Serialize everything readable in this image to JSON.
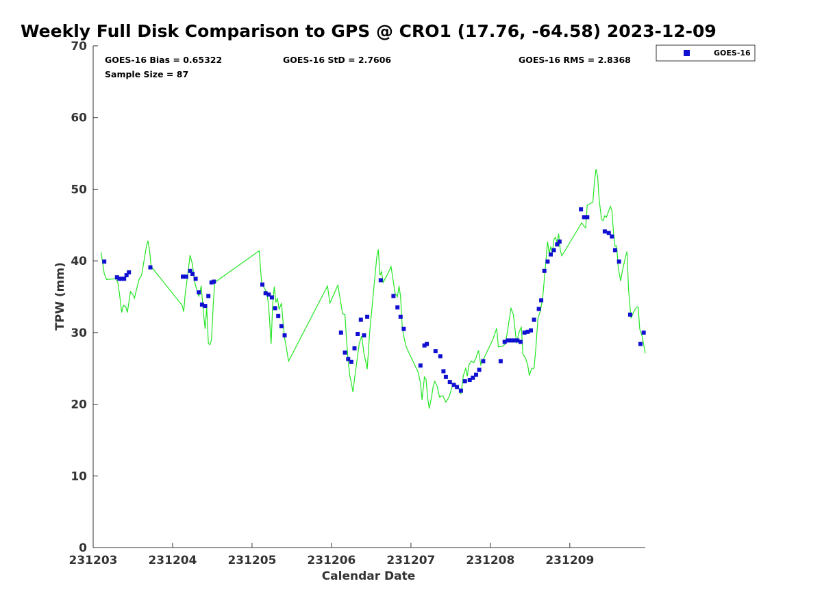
{
  "chart_data": {
    "type": "scatter",
    "title": "Weekly Full Disk Comparison to GPS @ CRO1 (17.76, -64.58) 2023-12-09",
    "xlabel": "Calendar Date",
    "ylabel": "TPW (mm)",
    "xlim": [
      0,
      6.95
    ],
    "ylim": [
      0,
      70
    ],
    "x_ticks": [
      {
        "value": 0,
        "label": "231203"
      },
      {
        "value": 1,
        "label": "231204"
      },
      {
        "value": 2,
        "label": "231205"
      },
      {
        "value": 3,
        "label": "231206"
      },
      {
        "value": 4,
        "label": "231207"
      },
      {
        "value": 5,
        "label": "231208"
      },
      {
        "value": 6,
        "label": "231209"
      }
    ],
    "y_ticks": [
      0,
      10,
      20,
      30,
      40,
      50,
      60,
      70
    ],
    "stats": {
      "bias": "GOES-16 Bias = 0.65322",
      "std": "GOES-16 StD = 2.7606",
      "rms": "GOES-16 RMS = 2.8368",
      "sample": "Sample Size = 87"
    },
    "legend": {
      "label": "GOES-16",
      "position": "top-right outside"
    },
    "colors": {
      "goes": "#1010d0",
      "gps": "#22e622",
      "axis": "#333333"
    },
    "series": [
      {
        "name": "GOES-16",
        "style": "markers",
        "points": [
          [
            0.14,
            39.9
          ],
          [
            0.3,
            37.7
          ],
          [
            0.33,
            37.5
          ],
          [
            0.36,
            37.5
          ],
          [
            0.39,
            37.5
          ],
          [
            0.42,
            38.0
          ],
          [
            0.45,
            38.4
          ],
          [
            0.72,
            39.1
          ],
          [
            1.13,
            37.8
          ],
          [
            1.17,
            37.8
          ],
          [
            1.22,
            38.6
          ],
          [
            1.25,
            38.2
          ],
          [
            1.29,
            37.5
          ],
          [
            1.33,
            35.6
          ],
          [
            1.37,
            33.9
          ],
          [
            1.41,
            33.7
          ],
          [
            1.45,
            35.1
          ],
          [
            1.49,
            37.0
          ],
          [
            1.52,
            37.1
          ],
          [
            2.13,
            36.7
          ],
          [
            2.17,
            35.5
          ],
          [
            2.21,
            35.3
          ],
          [
            2.25,
            34.9
          ],
          [
            2.29,
            33.4
          ],
          [
            2.33,
            32.3
          ],
          [
            2.37,
            30.9
          ],
          [
            2.41,
            29.6
          ],
          [
            3.12,
            30.0
          ],
          [
            3.17,
            27.2
          ],
          [
            3.21,
            26.3
          ],
          [
            3.25,
            25.9
          ],
          [
            3.29,
            27.8
          ],
          [
            3.33,
            29.8
          ],
          [
            3.37,
            31.8
          ],
          [
            3.41,
            29.6
          ],
          [
            3.45,
            32.2
          ],
          [
            3.62,
            37.3
          ],
          [
            3.78,
            35.1
          ],
          [
            3.83,
            33.5
          ],
          [
            3.87,
            32.2
          ],
          [
            3.91,
            30.5
          ],
          [
            4.12,
            25.4
          ],
          [
            4.17,
            28.2
          ],
          [
            4.2,
            28.4
          ],
          [
            4.31,
            27.4
          ],
          [
            4.37,
            26.7
          ],
          [
            4.41,
            24.6
          ],
          [
            4.44,
            23.8
          ],
          [
            4.49,
            23.1
          ],
          [
            4.54,
            22.7
          ],
          [
            4.58,
            22.4
          ],
          [
            4.63,
            21.9
          ],
          [
            4.68,
            23.2
          ],
          [
            4.74,
            23.4
          ],
          [
            4.78,
            23.7
          ],
          [
            4.82,
            24.1
          ],
          [
            4.86,
            24.8
          ],
          [
            4.91,
            26.0
          ],
          [
            5.13,
            26.0
          ],
          [
            5.18,
            28.7
          ],
          [
            5.22,
            28.9
          ],
          [
            5.26,
            28.9
          ],
          [
            5.3,
            28.9
          ],
          [
            5.34,
            28.9
          ],
          [
            5.38,
            28.7
          ],
          [
            5.43,
            30.0
          ],
          [
            5.47,
            30.1
          ],
          [
            5.51,
            30.3
          ],
          [
            5.55,
            31.8
          ],
          [
            5.61,
            33.3
          ],
          [
            5.64,
            34.5
          ],
          [
            5.68,
            38.6
          ],
          [
            5.72,
            39.9
          ],
          [
            5.76,
            40.9
          ],
          [
            5.8,
            41.5
          ],
          [
            5.84,
            42.3
          ],
          [
            5.87,
            42.7
          ],
          [
            6.14,
            47.2
          ],
          [
            6.18,
            46.1
          ],
          [
            6.22,
            46.1
          ],
          [
            6.44,
            44.1
          ],
          [
            6.49,
            43.9
          ],
          [
            6.53,
            43.4
          ],
          [
            6.57,
            41.5
          ],
          [
            6.62,
            39.9
          ],
          [
            6.76,
            32.5
          ],
          [
            6.89,
            28.4
          ],
          [
            6.93,
            30.0
          ]
        ]
      },
      {
        "name": "GPS",
        "style": "line",
        "points": [
          [
            0.1,
            41.2
          ],
          [
            0.14,
            38.2
          ],
          [
            0.17,
            37.4
          ],
          [
            0.28,
            37.5
          ],
          [
            0.31,
            37.0
          ],
          [
            0.33,
            35.5
          ],
          [
            0.36,
            32.8
          ],
          [
            0.38,
            33.8
          ],
          [
            0.41,
            33.6
          ],
          [
            0.43,
            32.8
          ],
          [
            0.47,
            35.7
          ],
          [
            0.5,
            35.3
          ],
          [
            0.52,
            34.8
          ],
          [
            0.55,
            36.2
          ],
          [
            0.58,
            37.5
          ],
          [
            0.61,
            38.0
          ],
          [
            0.64,
            40.0
          ],
          [
            0.67,
            42.0
          ],
          [
            0.69,
            42.8
          ],
          [
            0.71,
            41.5
          ],
          [
            0.73,
            39.2
          ],
          [
            1.12,
            33.8
          ],
          [
            1.14,
            32.9
          ],
          [
            1.16,
            35.5
          ],
          [
            1.19,
            38.0
          ],
          [
            1.22,
            40.8
          ],
          [
            1.25,
            39.5
          ],
          [
            1.27,
            37.5
          ],
          [
            1.29,
            36.5
          ],
          [
            1.31,
            35.8
          ],
          [
            1.33,
            35.0
          ],
          [
            1.36,
            36.5
          ],
          [
            1.39,
            32.5
          ],
          [
            1.41,
            30.5
          ],
          [
            1.43,
            33.5
          ],
          [
            1.45,
            28.5
          ],
          [
            1.47,
            28.3
          ],
          [
            1.49,
            29.0
          ],
          [
            1.51,
            33.5
          ],
          [
            1.53,
            37.0
          ],
          [
            2.09,
            41.4
          ],
          [
            2.12,
            37.0
          ],
          [
            2.14,
            36.5
          ],
          [
            2.17,
            35.9
          ],
          [
            2.19,
            35.4
          ],
          [
            2.21,
            33.5
          ],
          [
            2.24,
            28.4
          ],
          [
            2.26,
            34.0
          ],
          [
            2.28,
            36.4
          ],
          [
            2.3,
            34.2
          ],
          [
            2.32,
            34.8
          ],
          [
            2.34,
            33.2
          ],
          [
            2.36,
            33.8
          ],
          [
            2.37,
            34.1
          ],
          [
            2.39,
            31.5
          ],
          [
            2.41,
            29.2
          ],
          [
            2.43,
            28.0
          ],
          [
            2.46,
            26.0
          ],
          [
            2.95,
            36.5
          ],
          [
            2.98,
            34.1
          ],
          [
            3.08,
            36.6
          ],
          [
            3.12,
            34.0
          ],
          [
            3.14,
            32.6
          ],
          [
            3.17,
            32.5
          ],
          [
            3.19,
            29.0
          ],
          [
            3.21,
            26.0
          ],
          [
            3.23,
            24.0
          ],
          [
            3.25,
            23.0
          ],
          [
            3.27,
            21.7
          ],
          [
            3.29,
            23.5
          ],
          [
            3.32,
            26.0
          ],
          [
            3.35,
            28.5
          ],
          [
            3.38,
            29.5
          ],
          [
            3.41,
            27.0
          ],
          [
            3.43,
            26.0
          ],
          [
            3.45,
            24.9
          ],
          [
            3.48,
            30.0
          ],
          [
            3.51,
            33.5
          ],
          [
            3.54,
            37.0
          ],
          [
            3.57,
            40.5
          ],
          [
            3.59,
            41.6
          ],
          [
            3.61,
            38.0
          ],
          [
            3.63,
            38.5
          ],
          [
            3.65,
            37.0
          ],
          [
            3.7,
            38.0
          ],
          [
            3.75,
            39.2
          ],
          [
            3.78,
            37.0
          ],
          [
            3.8,
            35.5
          ],
          [
            3.83,
            35.0
          ],
          [
            3.85,
            36.5
          ],
          [
            3.87,
            35.0
          ],
          [
            3.89,
            31.0
          ],
          [
            3.91,
            29.5
          ],
          [
            3.94,
            28.0
          ],
          [
            4.09,
            24.5
          ],
          [
            4.12,
            23.0
          ],
          [
            4.14,
            20.6
          ],
          [
            4.17,
            23.8
          ],
          [
            4.19,
            23.5
          ],
          [
            4.21,
            21.0
          ],
          [
            4.23,
            19.4
          ],
          [
            4.26,
            21.0
          ],
          [
            4.28,
            22.5
          ],
          [
            4.3,
            23.2
          ],
          [
            4.33,
            22.5
          ],
          [
            4.36,
            21.0
          ],
          [
            4.4,
            21.2
          ],
          [
            4.44,
            20.3
          ],
          [
            4.48,
            21.0
          ],
          [
            4.52,
            22.5
          ],
          [
            4.56,
            22.7
          ],
          [
            4.6,
            22.3
          ],
          [
            4.63,
            21.4
          ],
          [
            4.66,
            24.0
          ],
          [
            4.69,
            25.0
          ],
          [
            4.71,
            23.9
          ],
          [
            4.73,
            25.5
          ],
          [
            4.76,
            26.0
          ],
          [
            4.79,
            25.8
          ],
          [
            4.82,
            26.5
          ],
          [
            4.85,
            27.5
          ],
          [
            4.88,
            25.5
          ],
          [
            4.91,
            26.2
          ],
          [
            5.03,
            29.0
          ],
          [
            5.08,
            30.6
          ],
          [
            5.1,
            28.0
          ],
          [
            5.16,
            28.1
          ],
          [
            5.19,
            28.5
          ],
          [
            5.22,
            30.5
          ],
          [
            5.24,
            32.0
          ],
          [
            5.26,
            33.4
          ],
          [
            5.29,
            32.5
          ],
          [
            5.31,
            30.5
          ],
          [
            5.33,
            28.5
          ],
          [
            5.36,
            30.0
          ],
          [
            5.39,
            30.8
          ],
          [
            5.41,
            27.0
          ],
          [
            5.44,
            26.5
          ],
          [
            5.47,
            25.5
          ],
          [
            5.49,
            24.0
          ],
          [
            5.52,
            25.0
          ],
          [
            5.55,
            25.0
          ],
          [
            5.57,
            27.5
          ],
          [
            5.6,
            32.0
          ],
          [
            5.63,
            33.0
          ],
          [
            5.66,
            35.0
          ],
          [
            5.68,
            37.5
          ],
          [
            5.7,
            40.0
          ],
          [
            5.72,
            42.7
          ],
          [
            5.74,
            41.0
          ],
          [
            5.76,
            42.0
          ],
          [
            5.78,
            41.0
          ],
          [
            5.8,
            43.0
          ],
          [
            5.82,
            43.3
          ],
          [
            5.84,
            42.5
          ],
          [
            5.86,
            43.8
          ],
          [
            5.88,
            41.5
          ],
          [
            5.9,
            40.7
          ],
          [
            6.15,
            45.3
          ],
          [
            6.18,
            44.8
          ],
          [
            6.2,
            44.6
          ],
          [
            6.22,
            47.8
          ],
          [
            6.26,
            48.0
          ],
          [
            6.29,
            48.2
          ],
          [
            6.31,
            51.0
          ],
          [
            6.33,
            52.8
          ],
          [
            6.35,
            51.8
          ],
          [
            6.37,
            48.5
          ],
          [
            6.4,
            45.8
          ],
          [
            6.42,
            45.6
          ],
          [
            6.44,
            46.3
          ],
          [
            6.46,
            46.1
          ],
          [
            6.49,
            47.0
          ],
          [
            6.51,
            47.6
          ],
          [
            6.53,
            47.0
          ],
          [
            6.55,
            44.0
          ],
          [
            6.57,
            42.0
          ],
          [
            6.59,
            42.1
          ],
          [
            6.61,
            39.0
          ],
          [
            6.64,
            37.2
          ],
          [
            6.66,
            38.5
          ],
          [
            6.7,
            40.5
          ],
          [
            6.72,
            41.3
          ],
          [
            6.74,
            36.0
          ],
          [
            6.77,
            32.0
          ],
          [
            6.81,
            33.0
          ],
          [
            6.84,
            33.5
          ],
          [
            6.86,
            33.6
          ],
          [
            6.88,
            30.5
          ],
          [
            6.91,
            29.5
          ],
          [
            6.95,
            27.1
          ]
        ]
      }
    ]
  }
}
